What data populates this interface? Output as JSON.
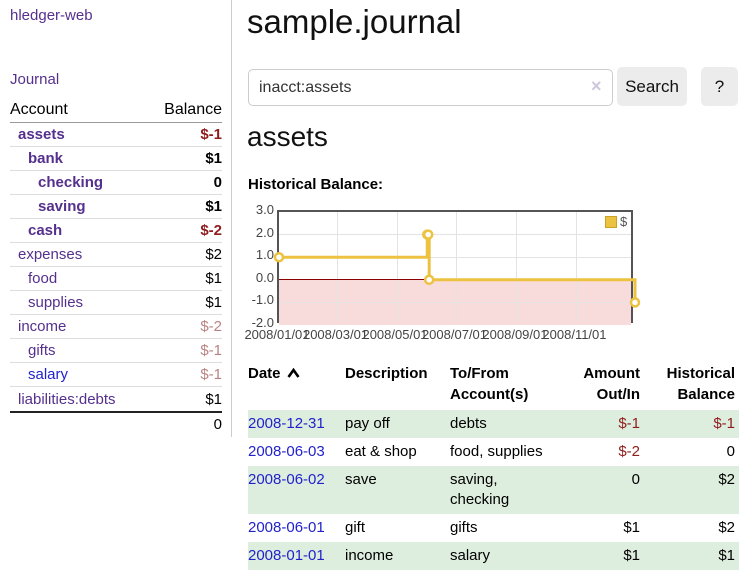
{
  "sidebar": {
    "brand": "hledger-web",
    "nav": {
      "journal": "Journal"
    },
    "accounts_table": {
      "account_header": "Account",
      "balance_header": "Balance",
      "rows": [
        {
          "account": "assets",
          "balance": "$-1"
        },
        {
          "account": "bank",
          "balance": "$1"
        },
        {
          "account": "checking",
          "balance": "0"
        },
        {
          "account": "saving",
          "balance": "$1"
        },
        {
          "account": "cash",
          "balance": "$-2"
        },
        {
          "account": "expenses",
          "balance": "$2"
        },
        {
          "account": "food",
          "balance": "$1"
        },
        {
          "account": "supplies",
          "balance": "$1"
        },
        {
          "account": "income",
          "balance": "$-2"
        },
        {
          "account": "gifts",
          "balance": "$-1"
        },
        {
          "account": "salary",
          "balance": "$-1"
        },
        {
          "account": "liabilities:debts",
          "balance": "$1"
        }
      ],
      "total": "0"
    }
  },
  "main": {
    "title": "sample.journal",
    "search": {
      "value": "inacct:assets",
      "clear_icon": "×",
      "button_label": "Search",
      "help_label": "?"
    },
    "account_heading": "assets",
    "chart_label": "Historical Balance:",
    "register_table": {
      "headers": {
        "date": "Date",
        "description": "Description",
        "accounts": "To/From Account(s)",
        "amount": "Amount Out/In",
        "balance": "Historical Balance"
      },
      "sort": "date ascending",
      "rows": [
        {
          "date": "2008-12-31",
          "description": "pay off",
          "accounts": "debts",
          "amount": "$-1",
          "balance": "$-1"
        },
        {
          "date": "2008-06-03",
          "description": "eat & shop",
          "accounts": "food, supplies",
          "amount": "$-2",
          "balance": "0"
        },
        {
          "date": "2008-06-02",
          "description": "save",
          "accounts": "saving, checking",
          "amount": "0",
          "balance": "$2"
        },
        {
          "date": "2008-06-01",
          "description": "gift",
          "accounts": "gifts",
          "amount": "$1",
          "balance": "$2"
        },
        {
          "date": "2008-01-01",
          "description": "income",
          "accounts": "salary",
          "amount": "$1",
          "balance": "$1"
        }
      ]
    }
  },
  "colors": {
    "link_purple": "#55308d",
    "link_blue": "#2222cc",
    "negative": "#8f1d1d",
    "negative_muted": "#b98383",
    "row_stripe_green": "#deeede",
    "button_gray": "#ececec"
  },
  "chart_data": {
    "type": "line",
    "style": "step",
    "title": "Historical Balance",
    "series": [
      {
        "name": "$",
        "color": "#edc240",
        "points": [
          [
            "2008-01-01",
            1
          ],
          [
            "2008-06-01",
            2
          ],
          [
            "2008-06-02",
            2
          ],
          [
            "2008-06-03",
            0
          ],
          [
            "2008-12-31",
            -1
          ]
        ]
      }
    ],
    "x_range": [
      "2008-01-01",
      "2008-12-31"
    ],
    "x_ticks": [
      "2008/01/01",
      "2008/03/01",
      "2008/05/01",
      "2008/07/01",
      "2008/09/01",
      "2008/11/01"
    ],
    "y_ticks": [
      3,
      2,
      1,
      0,
      -1,
      -2
    ],
    "ylim": [
      -2,
      3
    ],
    "grid": true,
    "legend_position": "top-right",
    "negative_region_color": "#f8dcdc",
    "zero_line_color": "#8b0000"
  }
}
